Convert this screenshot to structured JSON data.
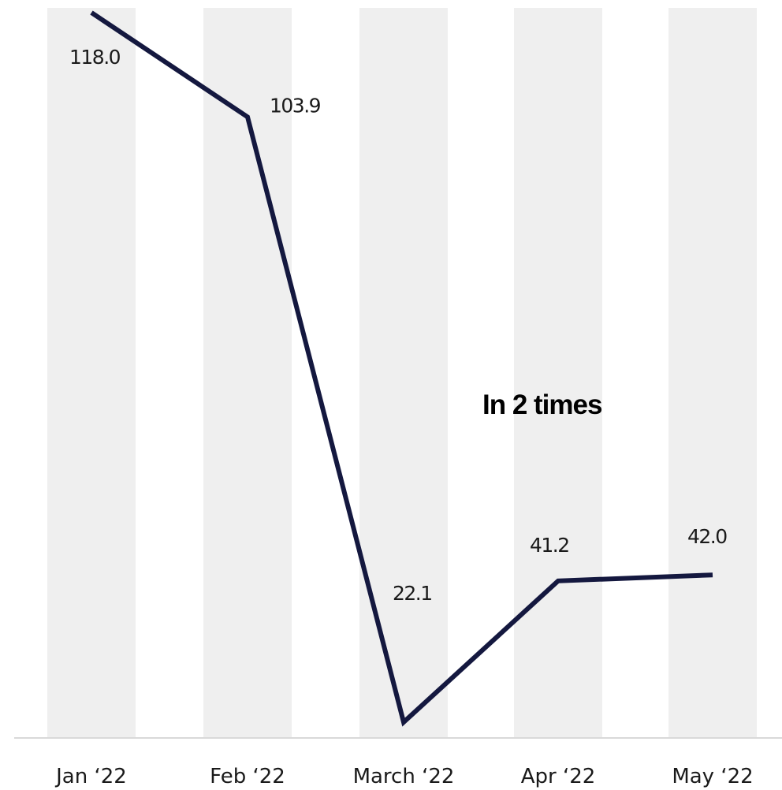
{
  "chart_data": {
    "type": "line",
    "categories": [
      "Jan ‘22",
      "Feb ‘22",
      "March ‘22",
      "Apr ‘22",
      "May ‘22"
    ],
    "series": [
      {
        "values": [
          118.0,
          103.9,
          22.1,
          41.2,
          42.0
        ]
      }
    ],
    "data_labels": [
      "118.0",
      "103.9",
      "22.1",
      "41.2",
      "42.0"
    ],
    "annotation": "In 2 times",
    "grid": false,
    "legend": "none",
    "background_bands": "alternating vertical bands per category",
    "colors": {
      "line": "#14183f",
      "band": "#efefef",
      "baseline": "#d9d9d9"
    }
  }
}
